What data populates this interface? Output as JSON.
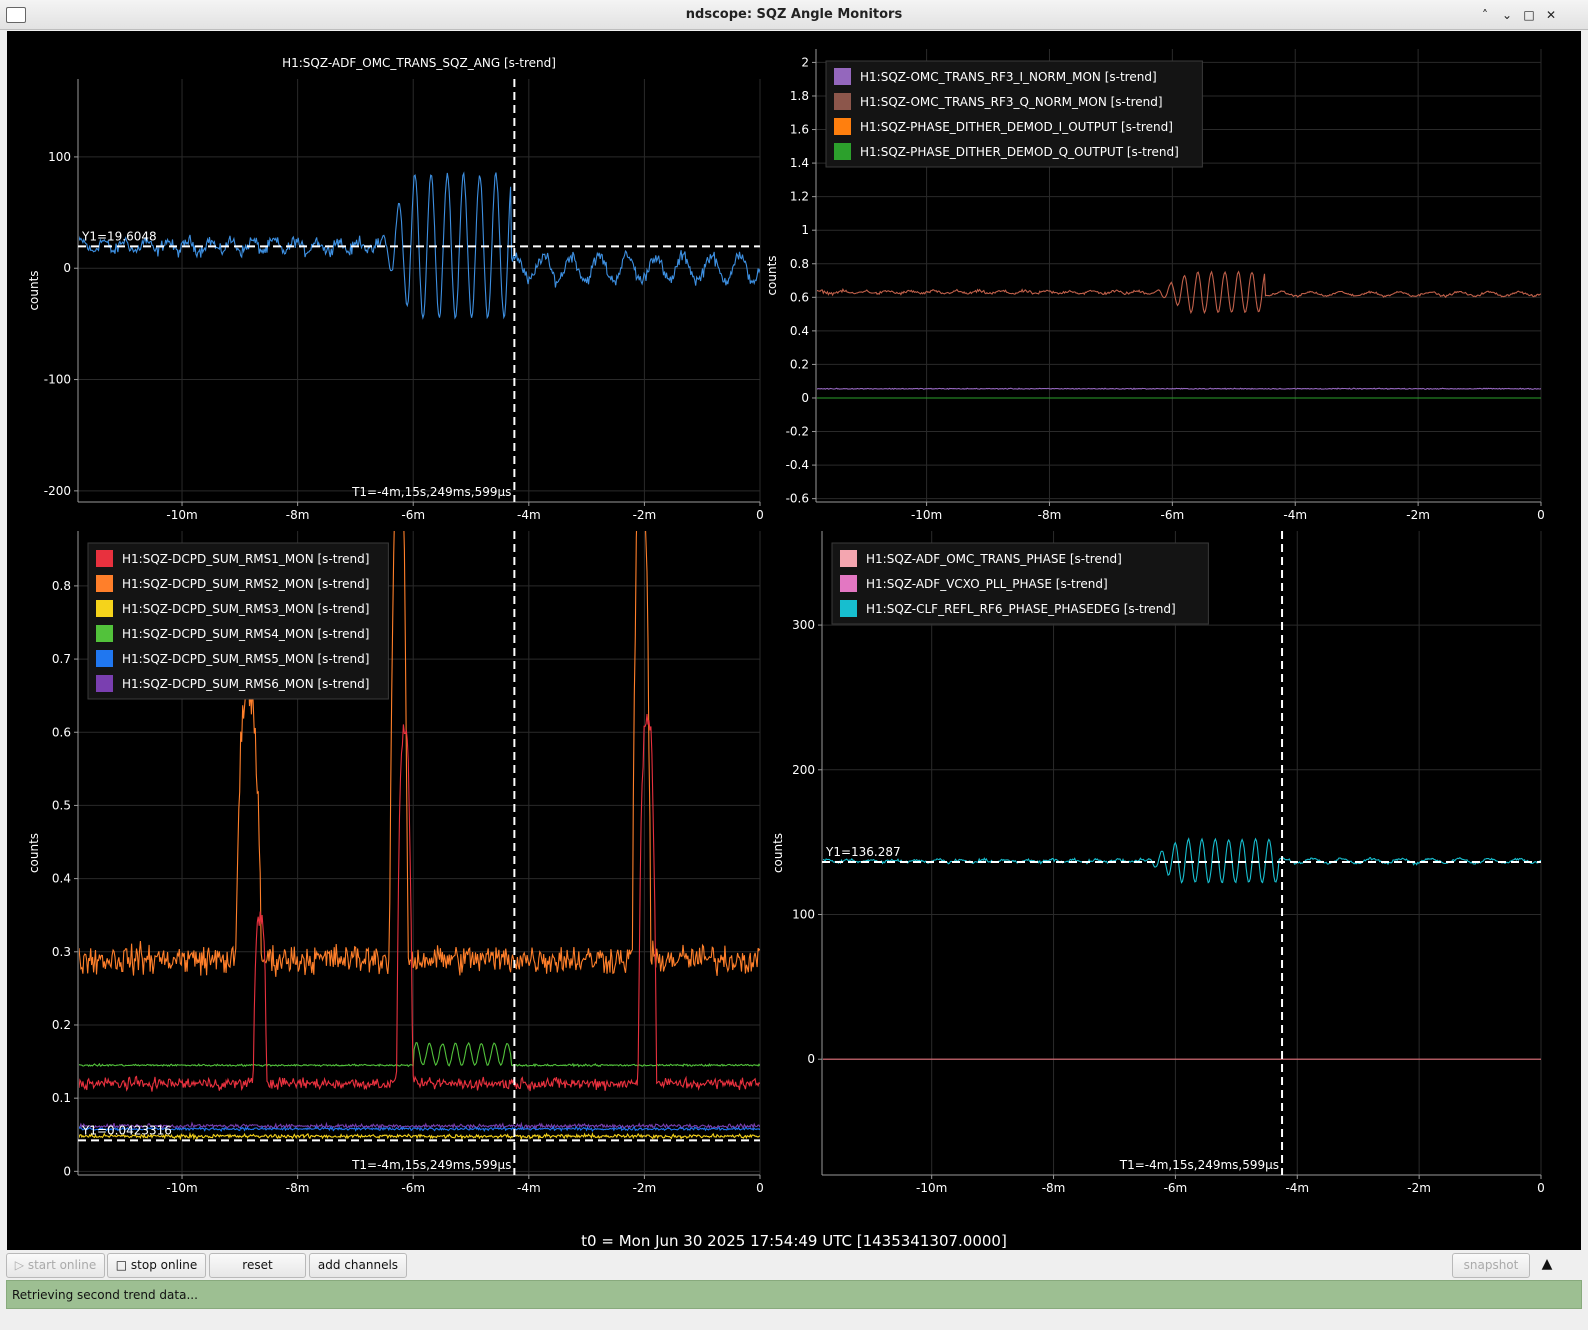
{
  "window": {
    "title": "ndscope: SQZ Angle Monitors"
  },
  "t0_label": "t0 = Mon Jun 30 2025 17:54:49 UTC [1435341307.0000]",
  "toolbar": {
    "start_online": "start online",
    "stop_online": "stop online",
    "reset": "reset",
    "add_channels": "add channels",
    "snapshot": "snapshot"
  },
  "status": "Retrieving second trend data...",
  "colors": {
    "background": "#000000",
    "grid": "#2a2a2a",
    "axis": "#9a9a9a",
    "cursor": "#ffffff"
  },
  "chart_data": [
    {
      "id": "tl",
      "type": "line",
      "title": "H1:SQZ-ADF_OMC_TRANS_SQZ_ANG [s-trend]",
      "ylabel": "counts",
      "xlabel": "",
      "xlim": [
        -11.8,
        0
      ],
      "ylim": [
        -210,
        170
      ],
      "xticks": [
        -10,
        -8,
        -6,
        -4,
        -2,
        0
      ],
      "xticklabels": [
        "-10m",
        "-8m",
        "-6m",
        "-4m",
        "-2m",
        "0"
      ],
      "yticks": [
        -200,
        -100,
        0,
        100
      ],
      "yticklabels": [
        "-200",
        "-100",
        "0",
        "100"
      ],
      "grid": true,
      "cursors": {
        "t1": -4.25,
        "t1_label": "T1=-4m,15s,249ms,599µs",
        "y1": 19.6048,
        "y1_label": "Y1=19.6048"
      },
      "legend": [],
      "series": [
        {
          "name": "H1:SQZ-ADF_OMC_TRANS_SQZ_ANG",
          "color": "#3d8fe0",
          "shape": "burst",
          "baseline": 20,
          "noise": 8,
          "burst_start": -6.6,
          "burst_end": -4.3,
          "burst_amp": 65,
          "burst_period": 0.28,
          "post_baseline": 0,
          "post_noise": 14
        }
      ]
    },
    {
      "id": "tr",
      "type": "line",
      "title": "",
      "ylabel": "counts",
      "xlabel": "",
      "xlim": [
        -11.8,
        0
      ],
      "ylim": [
        -0.62,
        2.08
      ],
      "xticks": [
        -10,
        -8,
        -6,
        -4,
        -2,
        0
      ],
      "xticklabels": [
        "-10m",
        "-8m",
        "-6m",
        "-4m",
        "-2m",
        "0"
      ],
      "yticks": [
        -0.6,
        -0.4,
        -0.2,
        0,
        0.2,
        0.4,
        0.6,
        0.8,
        1,
        1.2,
        1.4,
        1.6,
        1.8,
        2
      ],
      "yticklabels": [
        "-0.6",
        "-0.4",
        "-0.2",
        "0",
        "0.2",
        "0.4",
        "0.6",
        "0.8",
        "1",
        "1.2",
        "1.4",
        "1.6",
        "1.8",
        "2"
      ],
      "grid": true,
      "cursors": null,
      "legend": [
        {
          "name": "H1:SQZ-OMC_TRANS_RF3_I_NORM_MON [s-trend]",
          "color": "#9467bd"
        },
        {
          "name": "H1:SQZ-OMC_TRANS_RF3_Q_NORM_MON [s-trend]",
          "color": "#8c564b"
        },
        {
          "name": "H1:SQZ-PHASE_DITHER_DEMOD_I_OUTPUT [s-trend]",
          "color": "#ff7f0e"
        },
        {
          "name": "H1:SQZ-PHASE_DITHER_DEMOD_Q_OUTPUT [s-trend]",
          "color": "#2ca02c"
        }
      ],
      "series": [
        {
          "name": "H1:SQZ-OMC_TRANS_RF3_Q_NORM_MON",
          "color": "#c0604a",
          "shape": "burst",
          "baseline": 0.63,
          "noise": 0.012,
          "burst_start": -6.3,
          "burst_end": -4.5,
          "burst_amp": 0.12,
          "burst_period": 0.22,
          "post_baseline": 0.62,
          "post_noise": 0.015
        },
        {
          "name": "H1:SQZ-OMC_TRANS_RF3_I_NORM_MON",
          "color": "#9467bd",
          "shape": "flat",
          "baseline": 0.055,
          "noise": 0.004
        },
        {
          "name": "H1:SQZ-PHASE_DITHER_DEMOD_Q_OUTPUT",
          "color": "#2ca02c",
          "shape": "flat",
          "baseline": 0.0,
          "noise": 0.0
        }
      ]
    },
    {
      "id": "bl",
      "type": "line",
      "title": "",
      "ylabel": "counts",
      "xlabel": "",
      "xlim": [
        -11.8,
        0
      ],
      "ylim": [
        -0.005,
        0.875
      ],
      "xticks": [
        -10,
        -8,
        -6,
        -4,
        -2,
        0
      ],
      "xticklabels": [
        "-10m",
        "-8m",
        "-6m",
        "-4m",
        "-2m",
        "0"
      ],
      "yticks": [
        0,
        0.1,
        0.2,
        0.3,
        0.4,
        0.5,
        0.6,
        0.7,
        0.8
      ],
      "yticklabels": [
        "0",
        "0.1",
        "0.2",
        "0.3",
        "0.4",
        "0.5",
        "0.6",
        "0.7",
        "0.8"
      ],
      "grid": true,
      "cursors": {
        "t1": -4.25,
        "t1_label": "T1=-4m,15s,249ms,599µs",
        "y1": 0.0423316,
        "y1_label": "Y1=0.0423316"
      },
      "legend": [
        {
          "name": "H1:SQZ-DCPD_SUM_RMS1_MON [s-trend]",
          "color": "#e8313e"
        },
        {
          "name": "H1:SQZ-DCPD_SUM_RMS2_MON [s-trend]",
          "color": "#ff7f2a"
        },
        {
          "name": "H1:SQZ-DCPD_SUM_RMS3_MON [s-trend]",
          "color": "#f5d31b"
        },
        {
          "name": "H1:SQZ-DCPD_SUM_RMS4_MON [s-trend]",
          "color": "#52c23b"
        },
        {
          "name": "H1:SQZ-DCPD_SUM_RMS5_MON [s-trend]",
          "color": "#2077f0"
        },
        {
          "name": "H1:SQZ-DCPD_SUM_RMS6_MON [s-trend]",
          "color": "#7a3fb0"
        }
      ],
      "series": [
        {
          "name": "H1:SQZ-DCPD_SUM_RMS2_MON",
          "color": "#ff7f2a",
          "shape": "spiky",
          "baseline": 0.29,
          "noise": 0.03,
          "spikes": [
            [
              -8.85,
              0.65,
              0.22
            ],
            [
              -6.25,
              0.95,
              0.16
            ],
            [
              -2.05,
              0.95,
              0.16
            ]
          ]
        },
        {
          "name": "H1:SQZ-DCPD_SUM_RMS4_MON",
          "color": "#52c23b",
          "shape": "bump",
          "baseline": 0.145,
          "noise": 0.002,
          "bump_start": -6.0,
          "bump_end": -4.3,
          "bump_amp": 0.03
        },
        {
          "name": "H1:SQZ-DCPD_SUM_RMS1_MON",
          "color": "#e8313e",
          "shape": "spiky",
          "baseline": 0.12,
          "noise": 0.012,
          "spikes": [
            [
              -8.65,
              0.35,
              0.12
            ],
            [
              -6.15,
              0.6,
              0.14
            ],
            [
              -1.95,
              0.62,
              0.16
            ]
          ]
        },
        {
          "name": "H1:SQZ-DCPD_SUM_RMS6_MON",
          "color": "#7a3fb0",
          "shape": "flat",
          "baseline": 0.062,
          "noise": 0.004
        },
        {
          "name": "H1:SQZ-DCPD_SUM_RMS5_MON",
          "color": "#2077f0",
          "shape": "flat",
          "baseline": 0.058,
          "noise": 0.003
        },
        {
          "name": "H1:SQZ-DCPD_SUM_RMS3_MON",
          "color": "#f5d31b",
          "shape": "flat",
          "baseline": 0.048,
          "noise": 0.004
        }
      ]
    },
    {
      "id": "br",
      "type": "line",
      "title": "",
      "ylabel": "counts",
      "xlabel": "",
      "xlim": [
        -11.8,
        0
      ],
      "ylim": [
        -80,
        365
      ],
      "xticks": [
        -10,
        -8,
        -6,
        -4,
        -2,
        0
      ],
      "xticklabels": [
        "-10m",
        "-8m",
        "-6m",
        "-4m",
        "-2m",
        "0"
      ],
      "yticks": [
        0,
        100,
        200,
        300
      ],
      "yticklabels": [
        "0",
        "100",
        "200",
        "300"
      ],
      "grid": true,
      "cursors": {
        "t1": -4.25,
        "t1_label": "T1=-4m,15s,249ms,599µs",
        "y1": 136.287,
        "y1_label": "Y1=136.287"
      },
      "legend": [
        {
          "name": "H1:SQZ-ADF_OMC_TRANS_PHASE [s-trend]",
          "color": "#f4a6b0"
        },
        {
          "name": "H1:SQZ-ADF_VCXO_PLL_PHASE [s-trend]",
          "color": "#e377c2"
        },
        {
          "name": "H1:SQZ-CLF_REFL_RF6_PHASE_PHASEDEG [s-trend]",
          "color": "#17becf"
        }
      ],
      "series": [
        {
          "name": "H1:SQZ-CLF_REFL_RF6_PHASE_PHASEDEG",
          "color": "#17becf",
          "shape": "burst",
          "baseline": 137,
          "noise": 1.5,
          "burst_start": -6.5,
          "burst_end": -4.3,
          "burst_amp": 15,
          "burst_period": 0.22,
          "post_baseline": 137,
          "post_noise": 2
        },
        {
          "name": "H1:SQZ-ADF_OMC_TRANS_PHASE",
          "color": "#e0707a",
          "shape": "flat",
          "baseline": 0,
          "noise": 0
        }
      ]
    }
  ]
}
